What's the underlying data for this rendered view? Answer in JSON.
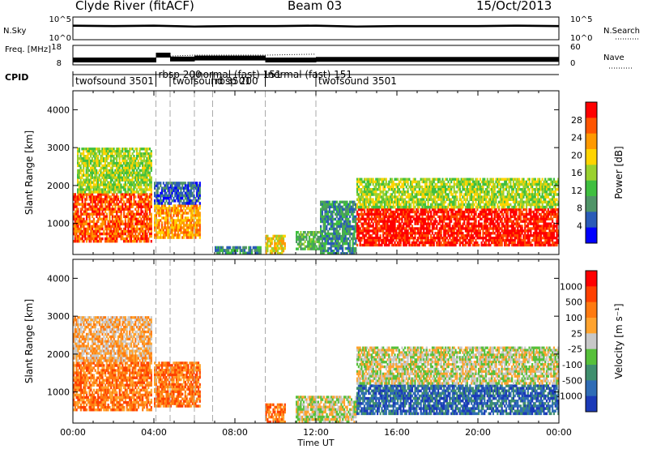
{
  "header": {
    "title": "Clyde River (fitACF)",
    "beam": "Beam 03",
    "date": "15/Oct/2013"
  },
  "chart_data": [
    {
      "type": "line",
      "panel": "noise",
      "ylabel": "N.Sky",
      "right_label": "N.Search",
      "left_ticks": [
        "10^5",
        "10^0"
      ],
      "right_ticks": [
        "10^5",
        "10^0"
      ],
      "series": [
        {
          "name": "N.Sky",
          "style": "solid",
          "x": [
            0,
            2,
            4,
            6,
            8,
            10,
            12,
            14,
            16,
            18,
            20,
            22,
            24
          ],
          "y": [
            3.1,
            3.0,
            3.1,
            2.9,
            3.0,
            3.0,
            3.1,
            2.9,
            3.0,
            3.0,
            3.0,
            3.1,
            3.0
          ]
        },
        {
          "name": "N.Search",
          "style": "dotted",
          "x": [
            0,
            4,
            8,
            12,
            16,
            20,
            24
          ],
          "y": [
            3.0,
            3.0,
            2.9,
            3.0,
            3.0,
            3.0,
            3.0
          ]
        }
      ]
    },
    {
      "type": "line",
      "panel": "frequency",
      "ylabel": "Freq. [MHz]",
      "right_label": "Nave",
      "left_ticks": [
        "18",
        "8"
      ],
      "right_ticks": [
        "60",
        "0"
      ],
      "series": [
        {
          "name": "Freq.",
          "style": "solid",
          "x": [
            0,
            4.1,
            4.1,
            4.8,
            4.8,
            6.0,
            6.0,
            9.5,
            9.5,
            12.0,
            12.0,
            24
          ],
          "y": [
            10.5,
            10.5,
            13,
            13,
            11,
            11,
            11.5,
            11.5,
            10.5,
            10.5,
            10.8,
            10.8
          ]
        },
        {
          "name": "Nave",
          "style": "dotted",
          "x": [
            4.1,
            4.8,
            6.0,
            9.5,
            12.0
          ],
          "y": [
            35,
            27,
            30,
            30,
            33
          ]
        }
      ]
    },
    {
      "type": "table",
      "panel": "cpid",
      "label": "CPID",
      "modes": [
        {
          "name": "twofsound 3501",
          "start": 0.0
        },
        {
          "name": "rbsp 200",
          "start": 4.1
        },
        {
          "name": "twofsound 3501",
          "start": 4.8
        },
        {
          "name": "normal (fast) 151",
          "start": 6.0
        },
        {
          "name": "rbsp 200",
          "start": 6.9
        },
        {
          "name": "normal (fast) 151",
          "start": 9.5
        },
        {
          "name": "twofsound 3501",
          "start": 12.0
        }
      ]
    },
    {
      "type": "heatmap",
      "panel": "power",
      "ylabel": "Slant Range [km]",
      "colorbar_label": "Power [dB]",
      "colorbar_ticks": [
        "28",
        "24",
        "20",
        "16",
        "12",
        "8",
        "4"
      ],
      "ylim": [
        180,
        4500
      ],
      "y_ticks": [
        "1000",
        "2000",
        "3000",
        "4000"
      ],
      "time_range": [
        0,
        24
      ],
      "palette": [
        "#0000ff",
        "#2a5bb8",
        "#4f9467",
        "#3fbf3f",
        "#9ad12e",
        "#ffd400",
        "#ff9900",
        "#ff5500",
        "#ff0000"
      ],
      "regions": [
        {
          "t": [
            0.0,
            3.9
          ],
          "r": [
            500,
            1800
          ],
          "level": 7
        },
        {
          "t": [
            0.2,
            3.9
          ],
          "r": [
            1800,
            3000
          ],
          "level": 4
        },
        {
          "t": [
            4.0,
            6.3
          ],
          "r": [
            600,
            1500
          ],
          "level": 6
        },
        {
          "t": [
            4.0,
            6.3
          ],
          "r": [
            1500,
            2100
          ],
          "level": 1
        },
        {
          "t": [
            7.0,
            9.3
          ],
          "r": [
            180,
            400
          ],
          "level": 2
        },
        {
          "t": [
            9.5,
            10.5
          ],
          "r": [
            180,
            700
          ],
          "level": 5
        },
        {
          "t": [
            11.0,
            12.2
          ],
          "r": [
            300,
            800
          ],
          "level": 3
        },
        {
          "t": [
            12.2,
            14.0
          ],
          "r": [
            180,
            1600
          ],
          "level": 2
        },
        {
          "t": [
            14.0,
            24.0
          ],
          "r": [
            400,
            1400
          ],
          "level": 8
        },
        {
          "t": [
            14.0,
            24.0
          ],
          "r": [
            1400,
            2200
          ],
          "level": 4
        }
      ]
    },
    {
      "type": "heatmap",
      "panel": "velocity",
      "ylabel": "Slant Range [km]",
      "colorbar_label": "Velocity [m s⁻¹]",
      "colorbar_ticks": [
        "1000",
        "500",
        "100",
        "25",
        "-25",
        "-100",
        "-500",
        "-1000"
      ],
      "ylim": [
        180,
        4500
      ],
      "y_ticks": [
        "1000",
        "2000",
        "3000",
        "4000"
      ],
      "x_ticks": [
        "00:00",
        "04:00",
        "08:00",
        "12:00",
        "16:00",
        "20:00",
        "00:00"
      ],
      "xlabel": "Time UT",
      "time_range": [
        0,
        24
      ],
      "palette": [
        "#1b3ab8",
        "#2f6cb6",
        "#3f8f6e",
        "#56c03a",
        "#c8c8c8",
        "#ffa32e",
        "#ff7a10",
        "#ff4000",
        "#ff0000"
      ],
      "regions": [
        {
          "t": [
            0.0,
            3.9
          ],
          "r": [
            500,
            1800
          ],
          "level": 6
        },
        {
          "t": [
            0.0,
            3.9
          ],
          "r": [
            1800,
            3000
          ],
          "level": 5
        },
        {
          "t": [
            4.0,
            6.3
          ],
          "r": [
            600,
            1800
          ],
          "level": 6
        },
        {
          "t": [
            9.5,
            10.5
          ],
          "r": [
            180,
            700
          ],
          "level": 6
        },
        {
          "t": [
            11.0,
            14.0
          ],
          "r": [
            180,
            900
          ],
          "level": 4
        },
        {
          "t": [
            14.0,
            24.0
          ],
          "r": [
            400,
            1200
          ],
          "level": 1
        },
        {
          "t": [
            14.0,
            24.0
          ],
          "r": [
            1200,
            2200
          ],
          "level": 4
        }
      ]
    }
  ]
}
